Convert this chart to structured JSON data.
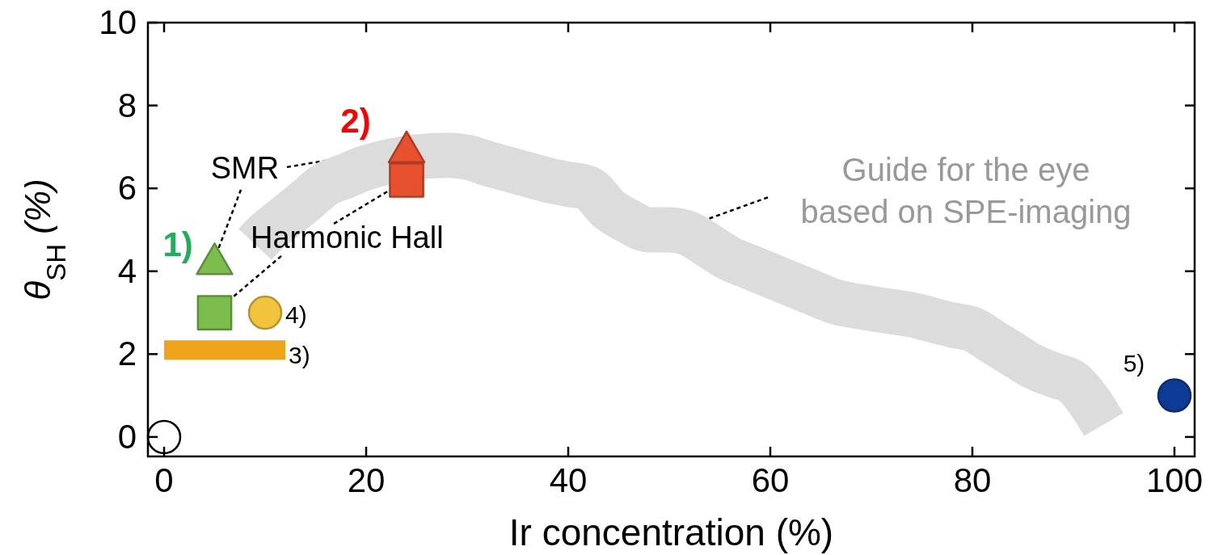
{
  "chart_data": {
    "type": "scatter",
    "xlabel": "Ir concentration (%)",
    "ylabel": "θ$_{SH}$ (%)",
    "xlim": [
      -1.6,
      102
    ],
    "ylim": [
      -0.47,
      10
    ],
    "xticks": [
      0,
      20,
      40,
      60,
      80,
      100
    ],
    "yticks": [
      0,
      2,
      4,
      6,
      8,
      10
    ],
    "grid": false,
    "series": [
      {
        "type": "line",
        "color": "#dcdcdc",
        "x": [
          9,
          10,
          12,
          14,
          16,
          18,
          20,
          28,
          30,
          32,
          35,
          38,
          40,
          42,
          44,
          46,
          48,
          50,
          52,
          54,
          56,
          58,
          60,
          62,
          64,
          66,
          70,
          74,
          78,
          80,
          82,
          84,
          86,
          88,
          90,
          92,
          93
        ],
        "values": [
          4.65,
          4.9,
          5.3,
          5.7,
          6.1,
          6.3,
          6.5,
          6.8,
          6.75,
          6.6,
          6.4,
          6.2,
          6.1,
          6.0,
          5.5,
          5.2,
          5.0,
          5.0,
          4.9,
          4.6,
          4.3,
          4.1,
          3.9,
          3.7,
          3.5,
          3.3,
          3.1,
          2.95,
          2.7,
          2.6,
          2.3,
          2.0,
          1.7,
          1.5,
          1.3,
          0.7,
          0.3
        ]
      },
      {
        "type": "scatter",
        "marker": "circle",
        "color": "#ffffff",
        "x": [
          0
        ],
        "values": [
          0
        ]
      },
      {
        "type": "scatter",
        "marker": "triangle",
        "color": "#7cbd4e",
        "x": [
          5
        ],
        "values": [
          4.3
        ]
      },
      {
        "type": "scatter",
        "marker": "square",
        "color": "#7cbd4e",
        "x": [
          5
        ],
        "values": [
          3.0
        ]
      },
      {
        "type": "scatter",
        "marker": "circle",
        "color": "#f2c43c",
        "x": [
          10
        ],
        "values": [
          3.0
        ]
      },
      {
        "type": "line",
        "color": "#f2a31c",
        "x": [
          0,
          12
        ],
        "values": [
          2.1,
          2.1
        ]
      },
      {
        "type": "scatter",
        "marker": "triangle",
        "color": "#e8502e",
        "x": [
          24
        ],
        "values": [
          7.0
        ]
      },
      {
        "type": "scatter",
        "marker": "square",
        "color": "#e8502e",
        "x": [
          24
        ],
        "values": [
          6.2
        ]
      },
      {
        "type": "scatter",
        "marker": "circle",
        "color": "#0d3a94",
        "x": [
          100
        ],
        "values": [
          1.0
        ]
      }
    ],
    "annotations": [
      {
        "text": "1)",
        "x": 5,
        "y": 4.3
      },
      {
        "text": "2)",
        "x": 24,
        "y": 7.0
      },
      {
        "text": "3)",
        "x": 12,
        "y": 2.1
      },
      {
        "text": "4)",
        "x": 10,
        "y": 3.0
      },
      {
        "text": "5)",
        "x": 100,
        "y": 1.0
      },
      {
        "text": "SMR",
        "x": 24,
        "y": 7.0
      },
      {
        "text": "Harmonic Hall",
        "x": 24,
        "y": 6.2
      },
      {
        "text": "Guide for the eye\nbased on SPE-imaging",
        "x": 52,
        "y": 5.1
      }
    ]
  }
}
